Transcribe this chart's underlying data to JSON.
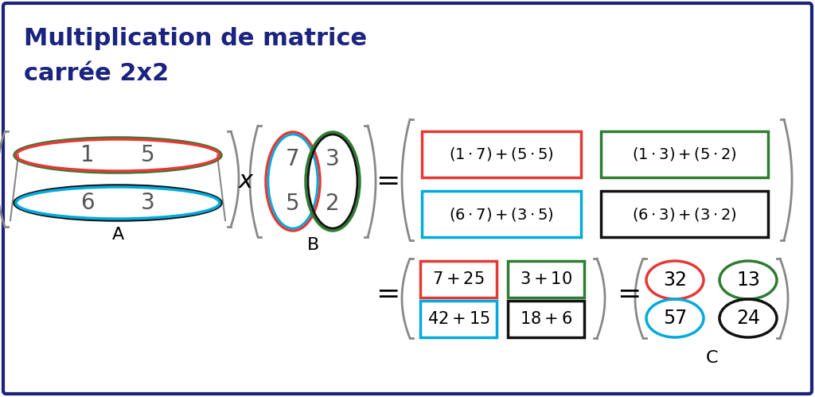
{
  "title_line1": "Multiplication de matrice",
  "title_line2": "carrée 2x2",
  "title_color": "#1a237e",
  "bg_color": "#ffffff",
  "border_color": "#1a237e",
  "red": "#e53935",
  "green": "#2e7d32",
  "blue": "#00aadd",
  "black": "#111111",
  "gray": "#888888",
  "label_A": "A",
  "label_B": "B",
  "label_C": "C"
}
